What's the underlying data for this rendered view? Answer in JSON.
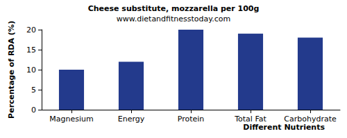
{
  "chart_data": {
    "type": "bar",
    "title": "Cheese substitute, mozzarella per 100g",
    "subtitle": "www.dietandfitnesstoday.com",
    "x_label": "Different Nutrients",
    "y_label": "Percentage of RDA (%)",
    "categories": [
      "Magnesium",
      "Energy",
      "Protein",
      "Total Fat",
      "Carbohydrate"
    ],
    "values": [
      10,
      12,
      20,
      19,
      18
    ],
    "color": "#233a8c",
    "ylim": [
      0,
      20
    ],
    "yticks": [
      0,
      5,
      10,
      15,
      20
    ],
    "grid": false
  }
}
